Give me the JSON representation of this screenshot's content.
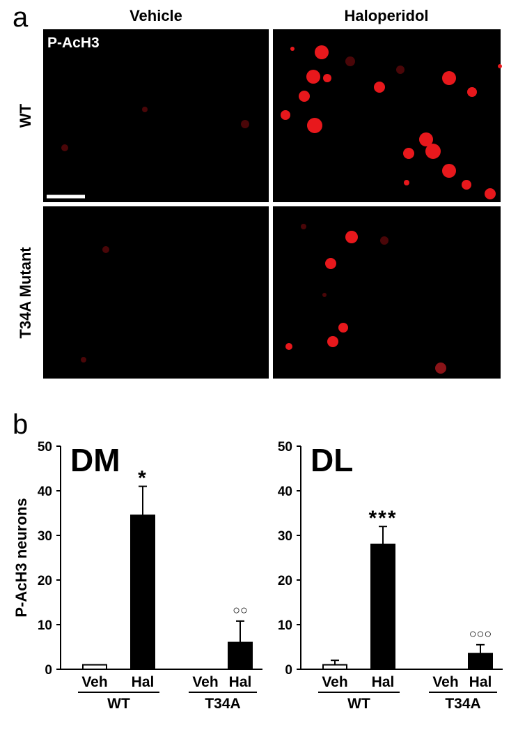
{
  "panel_a": {
    "label": "a",
    "columns": [
      "Vehicle",
      "Haloperidol"
    ],
    "rows": [
      "WT",
      "T34A Mutant"
    ],
    "image_label": "P-AcH3"
  },
  "panel_b_label": "b",
  "chart_data": [
    {
      "type": "bar",
      "title": "DM",
      "y_label": "P-AcH3 neurons",
      "categories": [
        "Veh",
        "Hal",
        "Veh",
        "Hal"
      ],
      "groups": [
        "WT",
        "T34A"
      ],
      "values": [
        1,
        34.5,
        0,
        6
      ],
      "errors": [
        null,
        6.5,
        null,
        4.8
      ],
      "annotations": [
        null,
        "*",
        null,
        "○○"
      ],
      "colors": [
        "#ffffff",
        "#000000",
        "#ffffff",
        "#000000"
      ],
      "ylim": [
        0,
        50
      ],
      "yticks": [
        0,
        10,
        20,
        30,
        40,
        50
      ]
    },
    {
      "type": "bar",
      "title": "DL",
      "categories": [
        "Veh",
        "Hal",
        "Veh",
        "Hal"
      ],
      "groups": [
        "WT",
        "T34A"
      ],
      "values": [
        1,
        28,
        0,
        3.5
      ],
      "errors": [
        1,
        4,
        null,
        2
      ],
      "annotations": [
        null,
        "***",
        null,
        "○○○"
      ],
      "colors": [
        "#ffffff",
        "#000000",
        "#ffffff",
        "#000000"
      ],
      "ylim": [
        0,
        50
      ],
      "yticks": [
        0,
        10,
        20,
        30,
        40,
        50
      ]
    }
  ]
}
